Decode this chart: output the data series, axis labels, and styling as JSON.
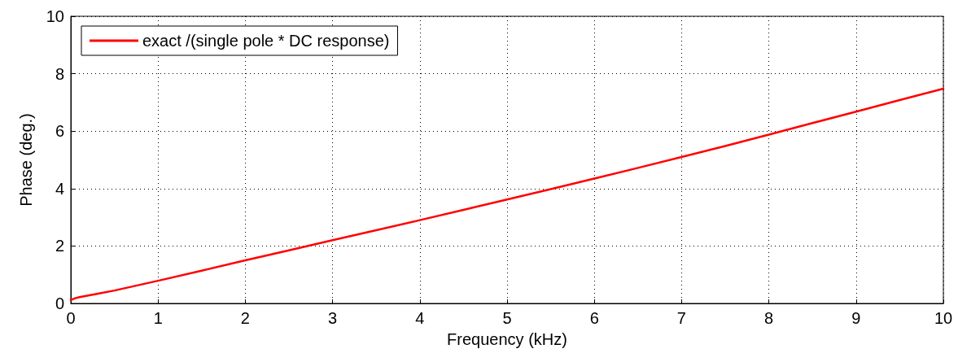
{
  "chart_data": {
    "type": "line",
    "xlabel": "Frequency (kHz)",
    "ylabel": "Phase (deg.)",
    "xlim": [
      0,
      10
    ],
    "xticks": [
      0,
      1,
      2,
      3,
      4,
      5,
      6,
      7,
      8,
      9,
      10
    ],
    "ylim": [
      0,
      10
    ],
    "yticks": [
      0,
      2,
      4,
      6,
      8,
      10
    ],
    "grid": true,
    "legend": "top left",
    "marker": "none",
    "line_style": "solid",
    "series": [
      {
        "name": "exact /(single pole * DC response)",
        "color": "#ff0000",
        "x": [
          0,
          0.05,
          0.1,
          0.3,
          0.5,
          1,
          1.5,
          2,
          2.5,
          3,
          3.5,
          4,
          4.5,
          5,
          5.5,
          6,
          6.5,
          7,
          7.5,
          8,
          8.5,
          9,
          9.5,
          10
        ],
        "values": [
          0.12,
          0.18,
          0.22,
          0.33,
          0.45,
          0.79,
          1.14,
          1.5,
          1.85,
          2.2,
          2.55,
          2.9,
          3.26,
          3.62,
          3.98,
          4.35,
          4.72,
          5.1,
          5.48,
          5.88,
          6.28,
          6.68,
          7.08,
          7.48
        ]
      }
    ]
  }
}
